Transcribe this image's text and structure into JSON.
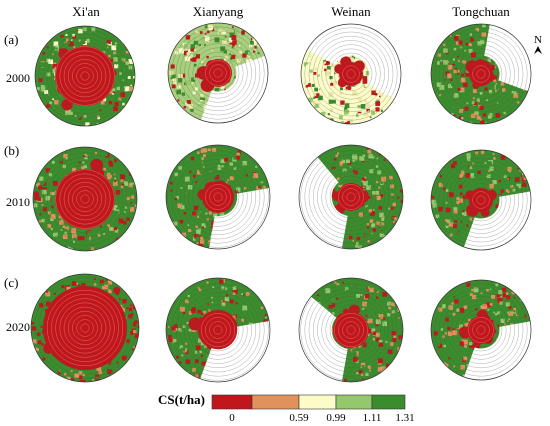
{
  "columns": [
    "Xi'an",
    "Xianyang",
    "Weinan",
    "Tongchuan"
  ],
  "rows": [
    {
      "panel": "(a)",
      "year": "2000"
    },
    {
      "panel": "(b)",
      "year": "2010"
    },
    {
      "panel": "(c)",
      "year": "2020"
    }
  ],
  "north_arrow": "N",
  "legend": {
    "title": "CS(t/ha)",
    "ticks": [
      "0",
      "0.59",
      "0.99",
      "1.11",
      "1.31"
    ],
    "colors": [
      "#c0171c",
      "#e0925a",
      "#fbfcc8",
      "#95c76d",
      "#3a8c2c"
    ]
  },
  "colors": {
    "built": "#c0171c",
    "green": "#3a8c2c",
    "pale": "#fbfcc8",
    "light_green": "#95c76d",
    "ring": "#555555"
  }
}
